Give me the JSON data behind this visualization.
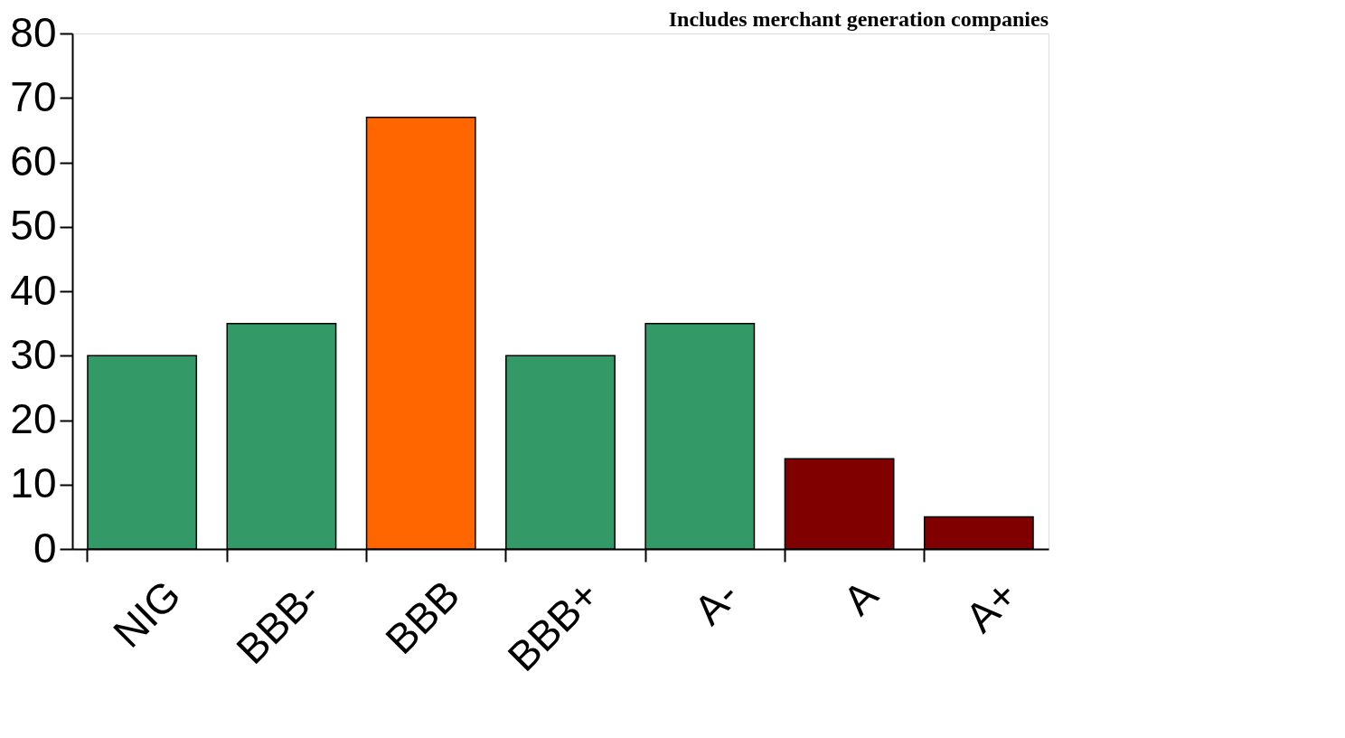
{
  "chart_data": {
    "type": "bar",
    "categories": [
      "NIG",
      "BBB-",
      "BBB",
      "BBB+",
      "A-",
      "A",
      "A+"
    ],
    "values": [
      30,
      35,
      67,
      30,
      35,
      14,
      5
    ],
    "colors": [
      "#339966",
      "#339966",
      "#ff6600",
      "#339966",
      "#339966",
      "#800000",
      "#800000"
    ],
    "ylim": [
      0,
      80
    ],
    "yticks": [
      0,
      10,
      20,
      30,
      40,
      50,
      60,
      70,
      80
    ],
    "grid": false,
    "annotations": [
      "Includes merchant generation companies"
    ]
  }
}
